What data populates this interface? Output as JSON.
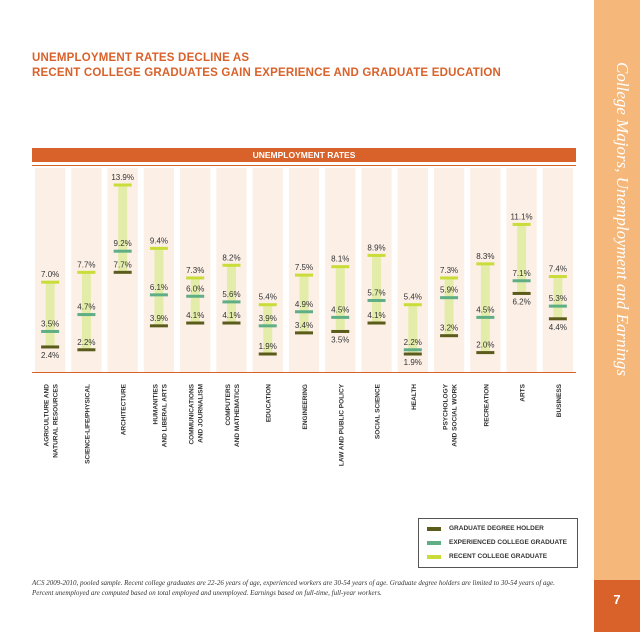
{
  "title_line1": "UNEMPLOYMENT RATES DECLINE AS",
  "title_line2": "RECENT COLLEGE GRADUATES GAIN EXPERIENCE AND GRADUATE EDUCATION",
  "sidebar_text": "College Majors, Unemployment and Earnings",
  "page_number": "7",
  "footnote": "ACS 2009-2010, pooled sample. Recent college graduates are 22-26 years of age, experienced workers are 30-54 years of age. Graduate degree holders are limited to 30-54 years of age. Percent unemployed are computed based on total employed and unemployed. Earnings based on full-time, full-year workers.",
  "colors": {
    "accent": "#d9612a",
    "graduate": "#5b5b1c",
    "experienced": "#5fae86",
    "recent": "#c9dc3a",
    "bar_fill": "#e3eda9",
    "column_bg": "#fbefe6"
  },
  "legend": [
    {
      "key": "graduate",
      "label": "GRADUATE DEGREE HOLDER"
    },
    {
      "key": "experienced",
      "label": "EXPERIENCED COLLEGE GRADUATE"
    },
    {
      "key": "recent",
      "label": "RECENT COLLEGE GRADUATE"
    }
  ],
  "chart_data": {
    "type": "bar",
    "title": "UNEMPLOYMENT RATES",
    "ylim": [
      1.5,
      14.5
    ],
    "categories": [
      [
        "AGRICULTURE AND",
        "NATURAL RESOURCES"
      ],
      [
        "SCIENCE-LIFE/PHYSICAL"
      ],
      [
        "ARCHITECTURE"
      ],
      [
        "HUMANITIES",
        "AND LIBERAL ARTS"
      ],
      [
        "COMMUNICATIONS",
        "AND JOURNALISM"
      ],
      [
        "COMPUTERS",
        "AND MATHEMATICS"
      ],
      [
        "EDUCATION"
      ],
      [
        "ENGINEERING"
      ],
      [
        "LAW AND PUBLIC POLICY"
      ],
      [
        "SOCIAL SCIENCE"
      ],
      [
        "HEALTH"
      ],
      [
        "PSYCHOLOGY",
        "AND SOCIAL WORK"
      ],
      [
        "RECREATION"
      ],
      [
        "ARTS"
      ],
      [
        "BUSINESS"
      ]
    ],
    "series": [
      {
        "name": "RECENT COLLEGE GRADUATE",
        "key": "recent",
        "values": [
          7.0,
          7.7,
          13.9,
          9.4,
          7.3,
          8.2,
          5.4,
          7.5,
          8.1,
          8.9,
          5.4,
          7.3,
          8.3,
          11.1,
          7.4
        ],
        "labels": [
          "7.0%",
          "7.7%",
          "13.9%",
          "9.4%",
          "7.3%",
          "8.2%",
          "5.4%",
          "7.5%",
          "8.1%",
          "8.9%",
          "5.4%",
          "7.3%",
          "8.3%",
          "11.1%",
          "7.4%"
        ]
      },
      {
        "name": "EXPERIENCED COLLEGE GRADUATE",
        "key": "experienced",
        "values": [
          3.5,
          4.7,
          9.2,
          6.1,
          6.0,
          5.6,
          3.9,
          4.9,
          4.5,
          5.7,
          2.2,
          5.9,
          4.5,
          7.1,
          5.3
        ],
        "labels": [
          "3.5%",
          "4.7%",
          "9.2%",
          "6.1%",
          "6.0%",
          "5.6%",
          "3.9%",
          "4.9%",
          "4.5%",
          "5.7%",
          "2.2%",
          "5.9%",
          "4.5%",
          "7.1%",
          "5.3%"
        ]
      },
      {
        "name": "GRADUATE DEGREE HOLDER",
        "key": "graduate",
        "values": [
          2.4,
          2.2,
          7.7,
          3.9,
          4.1,
          4.1,
          1.9,
          3.4,
          3.5,
          4.1,
          1.9,
          3.2,
          2.0,
          6.2,
          4.4
        ],
        "labels": [
          "2.4%",
          "2.2%",
          "7.7%",
          "3.9%",
          "4.1%",
          "4.1%",
          "1.9%",
          "3.4%",
          "3.5%",
          "4.1%",
          "1.9%",
          "3.2%",
          "2.0%",
          "6.2%",
          "4.4%"
        ]
      }
    ]
  }
}
